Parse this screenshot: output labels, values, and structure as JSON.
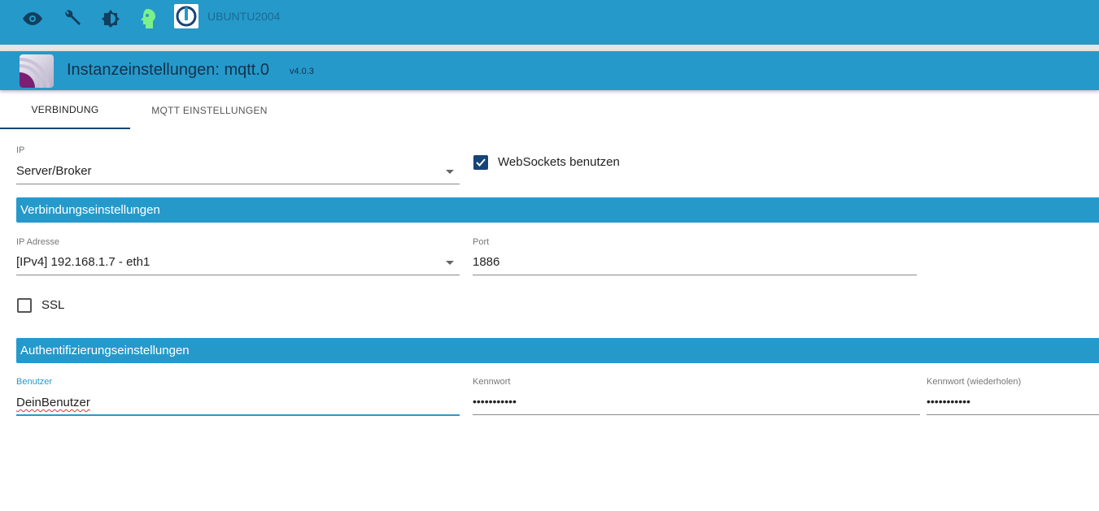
{
  "topbar": {
    "icons": [
      "eye-icon",
      "wrench-icon",
      "brightness-icon",
      "head-icon"
    ],
    "hostname": "UBUNTU2004"
  },
  "header": {
    "title": "Instanzeinstellungen: mqtt.0",
    "version": "v4.0.3"
  },
  "tabs": [
    {
      "label": "VERBINDUNG",
      "active": true
    },
    {
      "label": "MQTT EINSTELLUNGEN",
      "active": false
    }
  ],
  "form": {
    "ip_label": "IP",
    "ip_value": "Server/Broker",
    "websockets_label": "WebSockets benutzen",
    "websockets_checked": true,
    "section1": "Verbindungseinstellungen",
    "ipaddr_label": "IP Adresse",
    "ipaddr_value": "[IPv4] 192.168.1.7 - eth1",
    "port_label": "Port",
    "port_value": "1886",
    "ssl_label": "SSL",
    "ssl_checked": false,
    "section2": "Authentifizierungseinstellungen",
    "user_label": "Benutzer",
    "user_value": "DeinBenutzer",
    "pass_label": "Kennwort",
    "pass_value": "•••••••••••",
    "pass2_label": "Kennwort (wiederholen)",
    "pass2_value": "•••••••••••"
  },
  "colors": {
    "primary": "#2699cb",
    "dark": "#164477",
    "accent_head": "#7cf08a"
  }
}
